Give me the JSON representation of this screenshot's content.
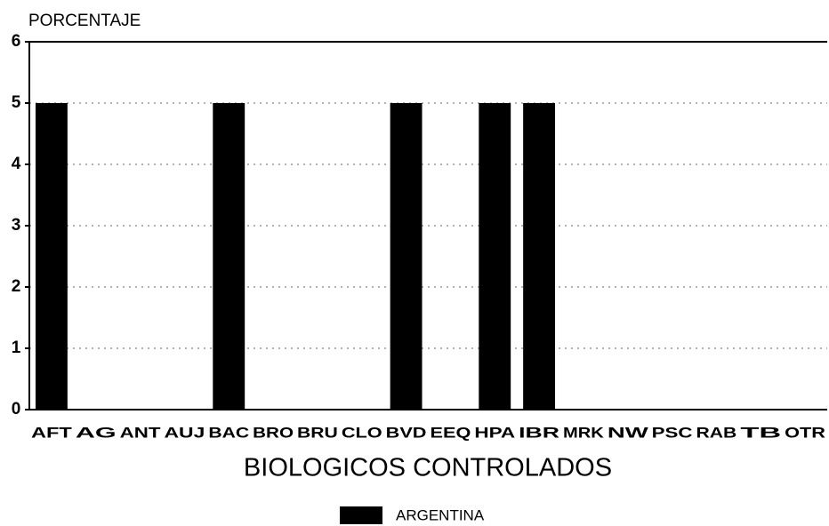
{
  "chart_data": {
    "type": "bar",
    "ylabel": "PORCENTAJE",
    "xlabel": "BIOLOGICOS CONTROLADOS",
    "categories": [
      "AFT",
      "AG",
      "ANT",
      "AUJ",
      "BAC",
      "BRO",
      "BRU",
      "CLO",
      "BVD",
      "EEQ",
      "HPA",
      "IBR",
      "MRK",
      "NW",
      "PSC",
      "RAB",
      "TB",
      "OTR"
    ],
    "series": [
      {
        "name": "ARGENTINA",
        "color": "#000000",
        "values": [
          5,
          0,
          0,
          0,
          5,
          0,
          0,
          0,
          5,
          0,
          5,
          5,
          0,
          0,
          0,
          0,
          0,
          0
        ]
      }
    ],
    "ylim": [
      0,
      6
    ],
    "yticks": [
      0,
      1,
      2,
      3,
      4,
      5,
      6
    ],
    "grid": true,
    "legend": "bottom"
  }
}
